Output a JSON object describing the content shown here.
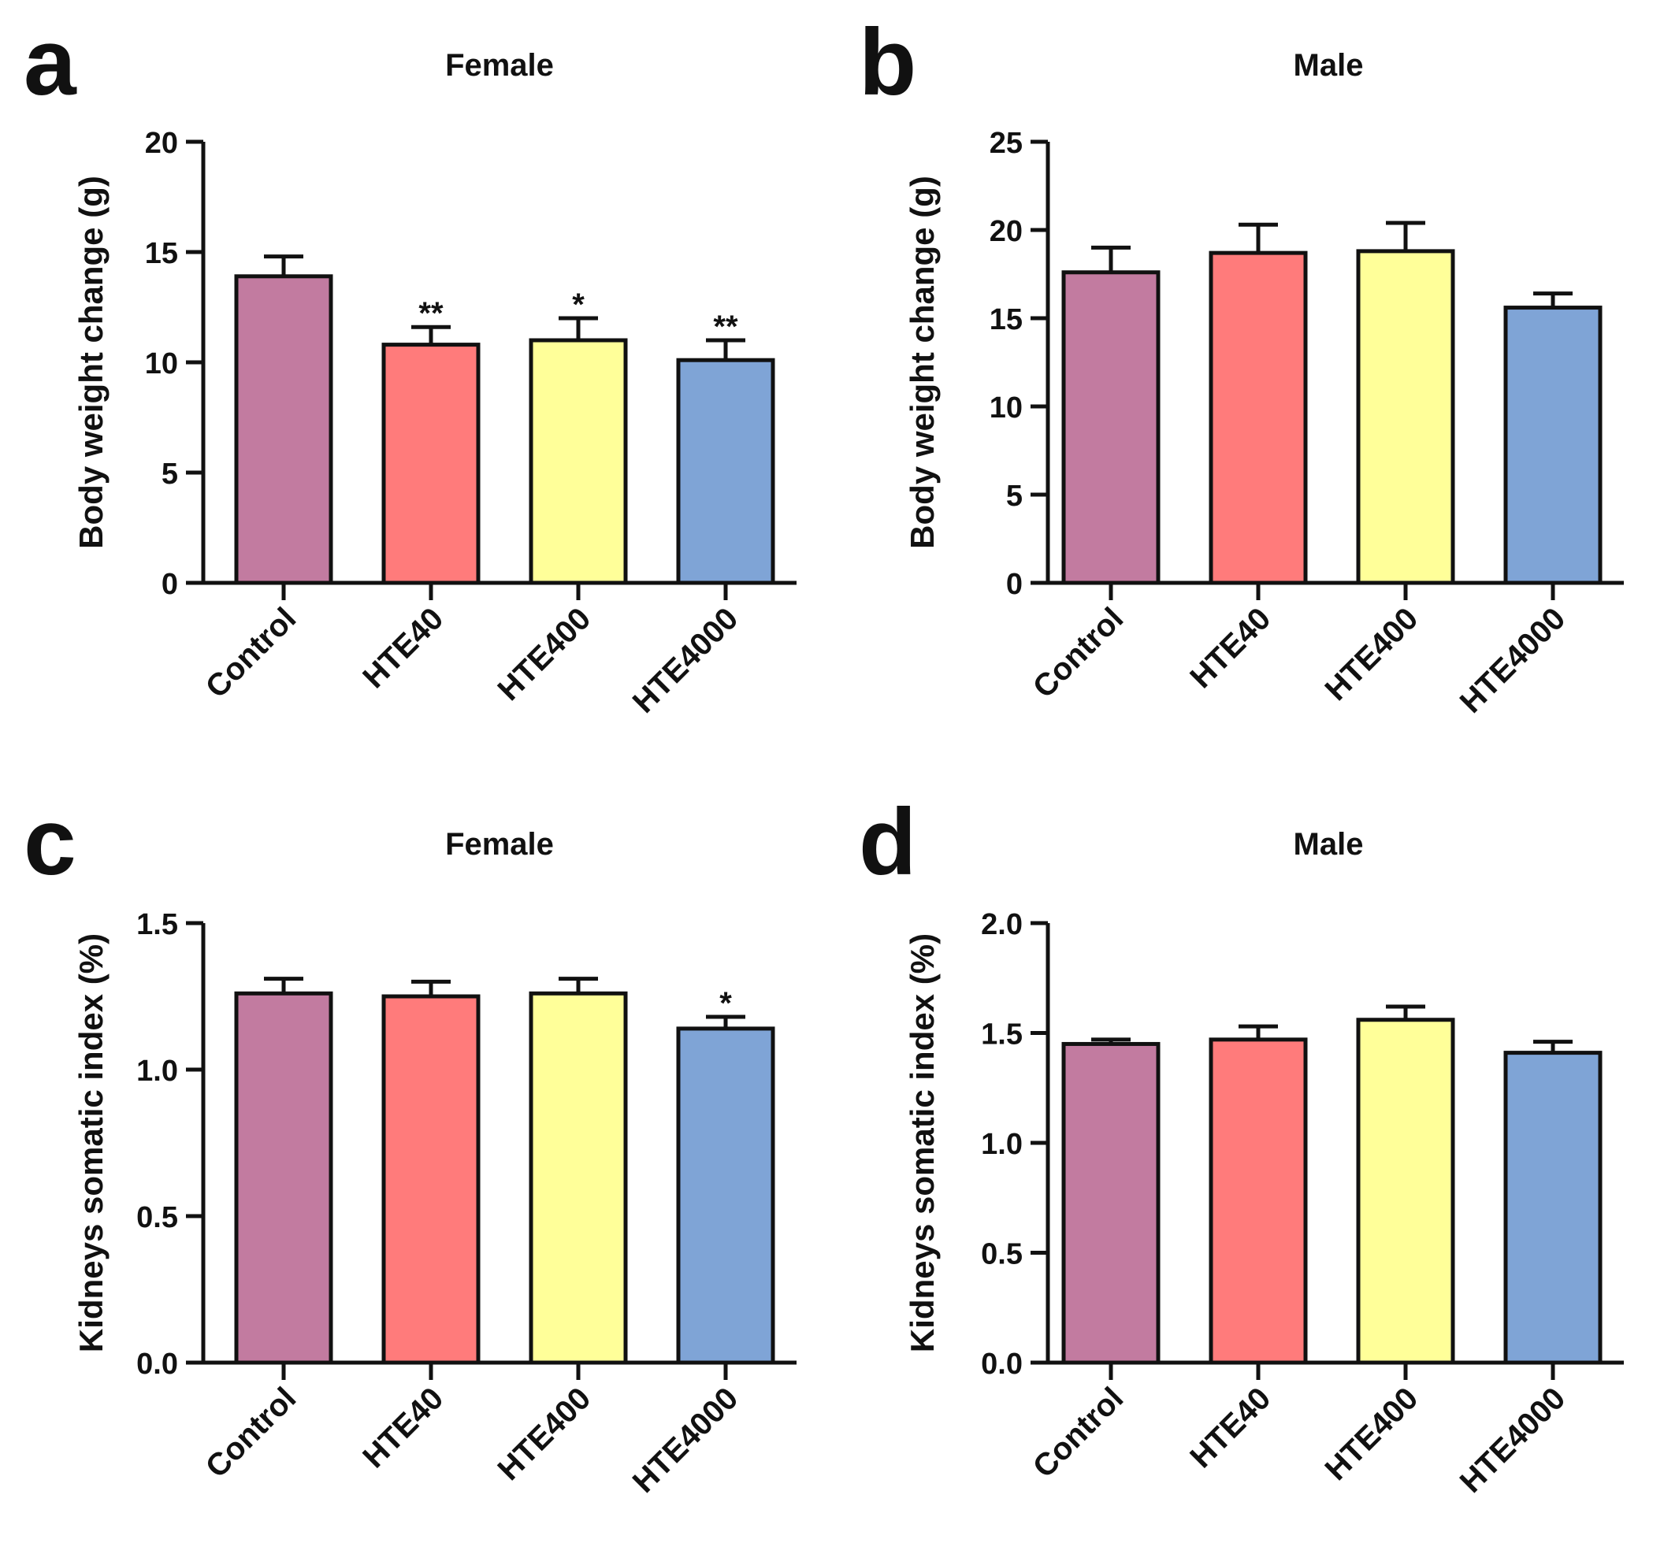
{
  "chart_data": [
    {
      "panel": "a",
      "type": "bar",
      "title": "Female",
      "ylabel": "Body weight change (g)",
      "xlabel": "",
      "categories": [
        "Control",
        "HTE40",
        "HTE400",
        "HTE4000"
      ],
      "values": [
        13.9,
        10.8,
        11.0,
        10.1
      ],
      "errors": [
        0.9,
        0.8,
        1.0,
        0.9
      ],
      "significance": [
        "",
        "**",
        "*",
        "**"
      ],
      "ylim": [
        0,
        20
      ],
      "yticks": [
        "0",
        "5",
        "10",
        "15",
        "20"
      ],
      "colors": [
        "#c27ba0",
        "#ff7b7b",
        "#ffff99",
        "#7fa4d6"
      ],
      "grid": false
    },
    {
      "panel": "b",
      "type": "bar",
      "title": "Male",
      "ylabel": "Body weight change (g)",
      "xlabel": "",
      "categories": [
        "Control",
        "HTE40",
        "HTE400",
        "HTE4000"
      ],
      "values": [
        17.6,
        18.7,
        18.8,
        15.6
      ],
      "errors": [
        1.4,
        1.6,
        1.6,
        0.8
      ],
      "significance": [
        "",
        "",
        "",
        ""
      ],
      "ylim": [
        0,
        25
      ],
      "yticks": [
        "0",
        "5",
        "10",
        "15",
        "20",
        "25"
      ],
      "colors": [
        "#c27ba0",
        "#ff7b7b",
        "#ffff99",
        "#7fa4d6"
      ],
      "grid": false
    },
    {
      "panel": "c",
      "type": "bar",
      "title": "Female",
      "ylabel": "Kidneys somatic index (%)",
      "xlabel": "",
      "categories": [
        "Control",
        "HTE40",
        "HTE400",
        "HTE4000"
      ],
      "values": [
        1.26,
        1.25,
        1.26,
        1.14
      ],
      "errors": [
        0.05,
        0.05,
        0.05,
        0.04
      ],
      "significance": [
        "",
        "",
        "",
        "*"
      ],
      "ylim": [
        0,
        1.5
      ],
      "yticks": [
        "0.0",
        "0.5",
        "1.0",
        "1.5"
      ],
      "colors": [
        "#c27ba0",
        "#ff7b7b",
        "#ffff99",
        "#7fa4d6"
      ],
      "grid": false
    },
    {
      "panel": "d",
      "type": "bar",
      "title": "Male",
      "ylabel": "Kidneys somatic index (%)",
      "xlabel": "",
      "categories": [
        "Control",
        "HTE40",
        "HTE400",
        "HTE4000"
      ],
      "values": [
        1.45,
        1.47,
        1.56,
        1.41
      ],
      "errors": [
        0.02,
        0.06,
        0.06,
        0.05
      ],
      "significance": [
        "",
        "",
        "",
        ""
      ],
      "ylim": [
        0,
        2.0
      ],
      "yticks": [
        "0.0",
        "0.5",
        "1.0",
        "1.5",
        "2.0"
      ],
      "colors": [
        "#c27ba0",
        "#ff7b7b",
        "#ffff99",
        "#7fa4d6"
      ],
      "grid": false
    }
  ]
}
